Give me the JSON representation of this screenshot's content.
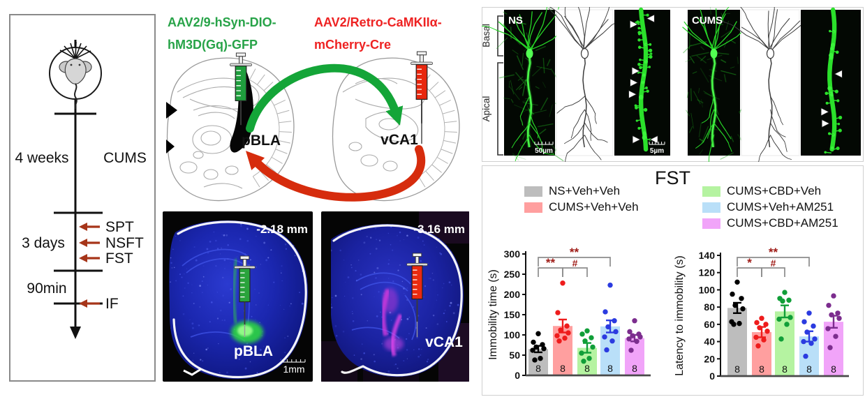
{
  "timeline": {
    "phase1_duration": "4 weeks",
    "phase1_label": "CUMS",
    "phase2_duration": "3 days",
    "tests": [
      "SPT",
      "NSFT",
      "FST"
    ],
    "phase3_duration": "90min",
    "phase3_test": "IF"
  },
  "injection": {
    "left_virus_line1": "AAV2/9-hSyn-DIO-",
    "left_virus_line2": "hM3D(Gq)-GFP",
    "right_virus_line1": "AAV2/Retro-CaMKIIα-",
    "right_virus_line2": "mCherry-Cre",
    "left_region": "pBLA",
    "right_region": "vCA1"
  },
  "histology": {
    "left_coordinate": "-2.18 mm",
    "left_region": "pBLA",
    "left_scale": "1mm",
    "right_coordinate": "-3.16 mm",
    "right_region": "vCA1"
  },
  "spine_panel": {
    "group1": "NS",
    "group2": "CUMS",
    "bracket_top": "Basal",
    "bracket_bottom": "Apical",
    "scale_photo": "50µm",
    "scale_dendrite": "5µm",
    "ns_arrowheads": 7,
    "cums_arrowheads": 3
  },
  "fst_panel": {
    "title": "FST",
    "legend": [
      {
        "label": "NS+Veh+Veh",
        "color": "#bdbdbd"
      },
      {
        "label": "CUMS+Veh+Veh",
        "color": "#ff9f9f"
      },
      {
        "label": "CUMS+CBD+Veh",
        "color": "#b5f3a1"
      },
      {
        "label": "CUMS+Veh+AM251",
        "color": "#b9dff8"
      },
      {
        "label": "CUMS+CBD+AM251",
        "color": "#f1a4f9"
      }
    ],
    "point_colors": [
      "#000000",
      "#ee1c1c",
      "#109e38",
      "#2b3be0",
      "#7c2d8e"
    ],
    "sig_color": "#9e1a15"
  },
  "colors": {
    "virus_green": "#27a348",
    "virus_red": "#ee2222",
    "arrow_green": "#14a538",
    "arrow_red": "#d62c0d",
    "timeline_arrow": "#a63519"
  },
  "chart_data": [
    {
      "type": "bar",
      "ylabel": "Immobility time (s)",
      "ylim": [
        0,
        300
      ],
      "yticks": [
        0,
        50,
        100,
        150,
        200,
        250,
        300
      ],
      "categories": [
        "NS+Veh+Veh",
        "CUMS+Veh+Veh",
        "CUMS+CBD+Veh",
        "CUMS+Veh+AM251",
        "CUMS+CBD+AM251"
      ],
      "values": [
        65,
        122,
        68,
        121,
        92
      ],
      "errors": [
        8,
        16,
        12,
        15,
        8
      ],
      "n": [
        "8",
        "8",
        "8",
        "8",
        "8"
      ],
      "points": [
        [
          103,
          82,
          76,
          70,
          66,
          62,
          42,
          38
        ],
        [
          228,
          155,
          122,
          112,
          105,
          98,
          92,
          85
        ],
        [
          110,
          102,
          93,
          85,
          70,
          55,
          42,
          35
        ],
        [
          223,
          157,
          135,
          120,
          108,
          95,
          85,
          63
        ],
        [
          135,
          108,
          102,
          98,
          95,
          90,
          84,
          62
        ]
      ],
      "significance": [
        {
          "a": 0,
          "b": 1,
          "label": "**",
          "row": 1
        },
        {
          "a": 1,
          "b": 2,
          "label": "#",
          "row": 1
        },
        {
          "a": 0,
          "b": 3,
          "label": "**",
          "row": 0
        }
      ]
    },
    {
      "type": "bar",
      "ylabel": "Latency to immobility (s)",
      "ylim": [
        0,
        140
      ],
      "yticks": [
        0,
        20,
        40,
        60,
        80,
        100,
        120,
        140
      ],
      "categories": [
        "NS+Veh+Veh",
        "CUMS+Veh+Veh",
        "CUMS+CBD+Veh",
        "CUMS+Veh+AM251",
        "CUMS+CBD+AM251"
      ],
      "values": [
        79,
        51,
        75,
        46,
        63
      ],
      "errors": [
        6,
        6,
        7,
        6,
        7
      ],
      "n": [
        "8",
        "8",
        "8",
        "8",
        "8"
      ],
      "points": [
        [
          109,
          95,
          90,
          82,
          78,
          63,
          61,
          60
        ],
        [
          67,
          62,
          60,
          56,
          52,
          45,
          42,
          35
        ],
        [
          97,
          90,
          88,
          87,
          68,
          66,
          60,
          43
        ],
        [
          73,
          63,
          58,
          51,
          43,
          40,
          38,
          23
        ],
        [
          93,
          82,
          73,
          71,
          67,
          55,
          46,
          33
        ]
      ],
      "significance": [
        {
          "a": 0,
          "b": 1,
          "label": "*",
          "row": 1
        },
        {
          "a": 1,
          "b": 2,
          "label": "#",
          "row": 1
        },
        {
          "a": 0,
          "b": 3,
          "label": "**",
          "row": 0
        }
      ]
    }
  ]
}
